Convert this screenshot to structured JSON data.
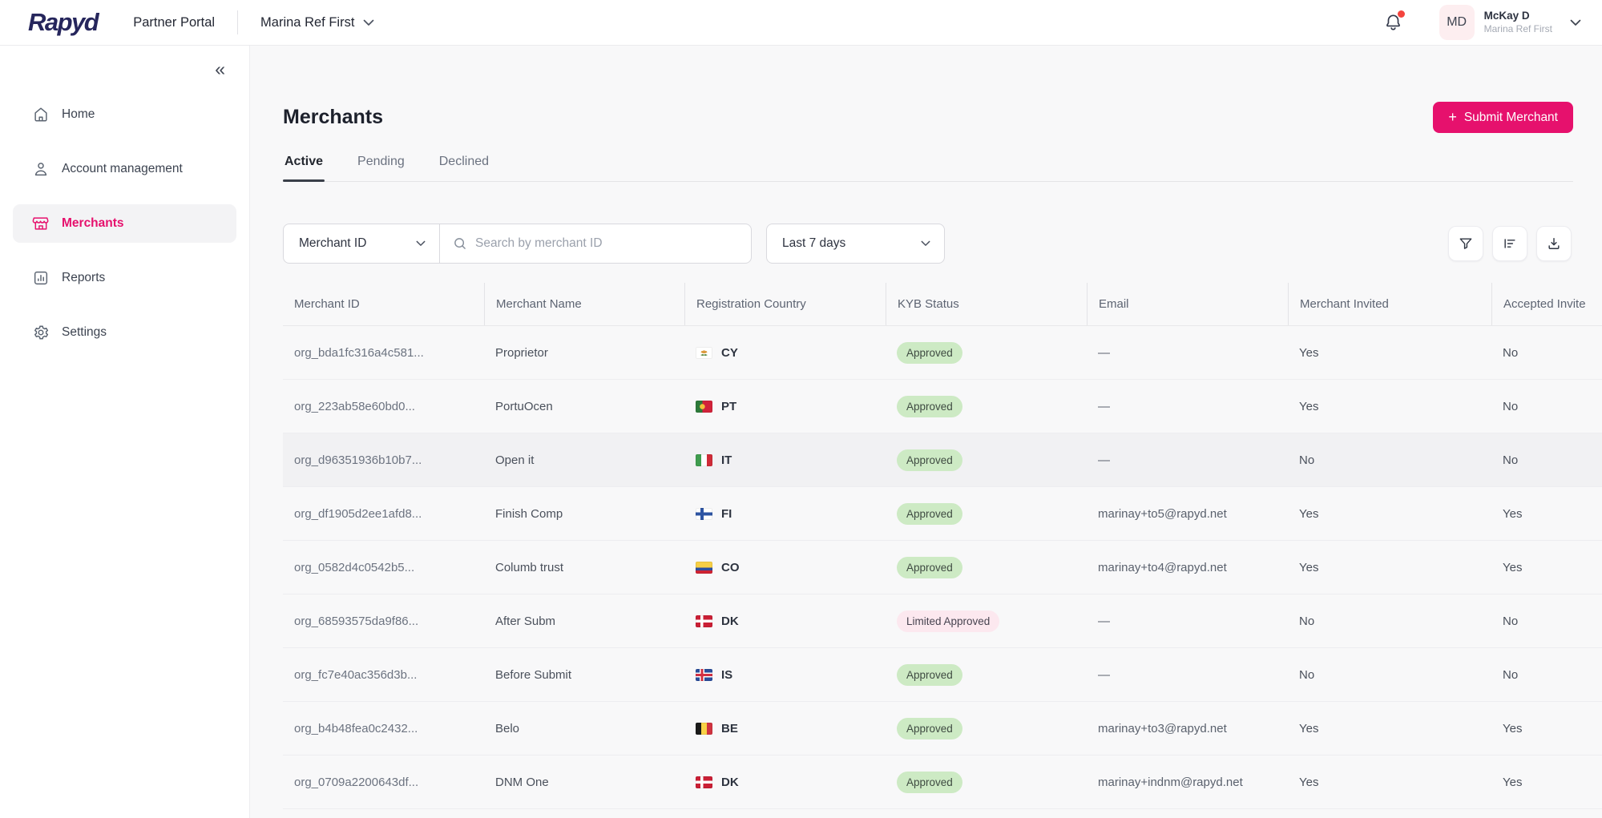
{
  "header": {
    "logo_text": "Rapyd",
    "portal_label": "Partner Portal",
    "org_selector": "Marina Ref First",
    "user": {
      "initials": "MD",
      "name": "McKay D",
      "org": "Marina Ref First"
    }
  },
  "sidebar": {
    "items": [
      {
        "label": "Home",
        "icon": "home-icon",
        "active": false
      },
      {
        "label": "Account management",
        "icon": "user-icon",
        "active": false
      },
      {
        "label": "Merchants",
        "icon": "store-icon",
        "active": true
      },
      {
        "label": "Reports",
        "icon": "reports-icon",
        "active": false
      },
      {
        "label": "Settings",
        "icon": "settings-icon",
        "active": false
      }
    ]
  },
  "main": {
    "title": "Merchants",
    "submit_button": {
      "plus": "+",
      "label": "Submit Merchant"
    },
    "tabs": [
      {
        "label": "Active",
        "active": true
      },
      {
        "label": "Pending",
        "active": false
      },
      {
        "label": "Declined",
        "active": false
      }
    ],
    "filters": {
      "field_selector": "Merchant ID",
      "search_placeholder": "Search by merchant ID",
      "date_range": "Last 7 days"
    },
    "table": {
      "columns": [
        "Merchant ID",
        "Merchant Name",
        "Registration Country",
        "KYB Status",
        "Email",
        "Merchant Invited",
        "Accepted Invite"
      ],
      "rows": [
        {
          "id": "org_bda1fc316a4c581...",
          "name": "Proprietor",
          "country": "CY",
          "kyb": "Approved",
          "email": "—",
          "invited": "Yes",
          "accepted": "No",
          "highlighted": false
        },
        {
          "id": "org_223ab58e60bd0...",
          "name": "PortuOcen",
          "country": "PT",
          "kyb": "Approved",
          "email": "—",
          "invited": "Yes",
          "accepted": "No",
          "highlighted": false
        },
        {
          "id": "org_d96351936b10b7...",
          "name": "Open it",
          "country": "IT",
          "kyb": "Approved",
          "email": "—",
          "invited": "No",
          "accepted": "No",
          "highlighted": true
        },
        {
          "id": "org_df1905d2ee1afd8...",
          "name": "Finish Comp",
          "country": "FI",
          "kyb": "Approved",
          "email": "marinay+to5@rapyd.net",
          "invited": "Yes",
          "accepted": "Yes",
          "highlighted": false
        },
        {
          "id": "org_0582d4c0542b5...",
          "name": "Columb trust",
          "country": "CO",
          "kyb": "Approved",
          "email": "marinay+to4@rapyd.net",
          "invited": "Yes",
          "accepted": "Yes",
          "highlighted": false
        },
        {
          "id": "org_68593575da9f86...",
          "name": "After Subm",
          "country": "DK",
          "kyb": "Limited Approved",
          "email": "—",
          "invited": "No",
          "accepted": "No",
          "highlighted": false
        },
        {
          "id": "org_fc7e40ac356d3b...",
          "name": "Before Submit",
          "country": "IS",
          "kyb": "Approved",
          "email": "—",
          "invited": "No",
          "accepted": "No",
          "highlighted": false
        },
        {
          "id": "org_b4b48fea0c2432...",
          "name": "Belo",
          "country": "BE",
          "kyb": "Approved",
          "email": "marinay+to3@rapyd.net",
          "invited": "Yes",
          "accepted": "Yes",
          "highlighted": false
        },
        {
          "id": "org_0709a2200643df...",
          "name": "DNM One",
          "country": "DK",
          "kyb": "Approved",
          "email": "marinay+indnm@rapyd.net",
          "invited": "Yes",
          "accepted": "Yes",
          "highlighted": false
        }
      ]
    }
  },
  "colors": {
    "brand_pink": "#e6116d",
    "logo_navy": "#26265c",
    "approved_bg": "#cdeac4",
    "limited_bg": "#fce8ef",
    "notification_dot": "#f4443e"
  }
}
